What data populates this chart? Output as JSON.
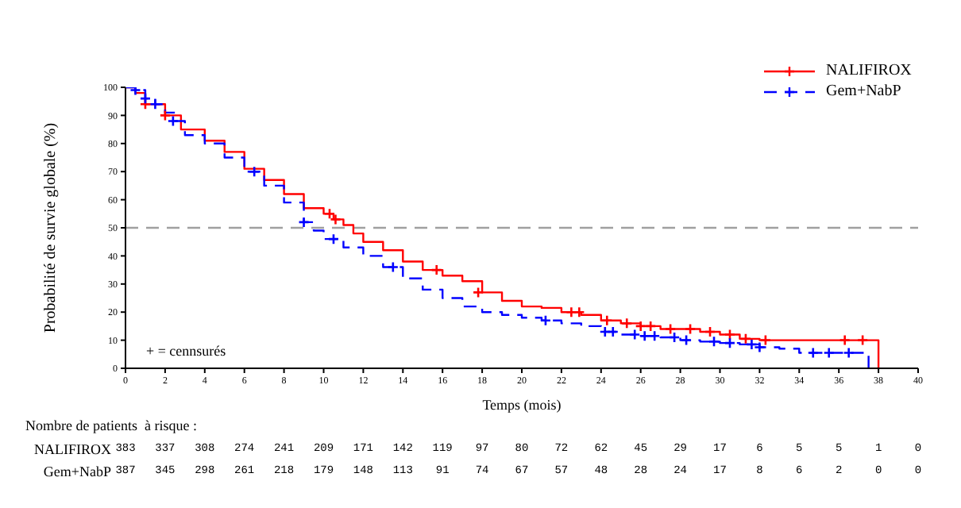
{
  "chart_data": {
    "type": "step",
    "xlabel": "Temps (mois)",
    "ylabel": "Probabilité de survie globale (%)",
    "xlim": [
      0,
      40
    ],
    "xticks": [
      0,
      2,
      4,
      6,
      8,
      10,
      12,
      14,
      16,
      18,
      20,
      22,
      24,
      26,
      28,
      30,
      32,
      34,
      36,
      38,
      40
    ],
    "ylim": [
      0,
      100
    ],
    "yticks": [
      0,
      10,
      20,
      30,
      40,
      50,
      60,
      70,
      80,
      90,
      100
    ],
    "grid": false,
    "legend": "top right",
    "ref_lines": [
      {
        "axis": "y",
        "value": 50,
        "color": "#a0a0a0",
        "line_style": "dashed"
      }
    ],
    "annotations": [
      "+ = cennsurés",
      "Nombre de patients  à risque :",
      "NALIFIROX 383 337 308 274 241 209 171 142 119 97 80 72 62 45 29 17 6 5 5 1 0",
      "Gem+NabP 387 345 298 261 218 179 148 113 91 74 67 57 48 28 24 17 8 6 2 0 0"
    ],
    "series": [
      {
        "name": "NALIFIROX",
        "color": "#ff0000",
        "line_style": "solid",
        "x": [
          0,
          0.5,
          1,
          2,
          2.8,
          4,
          5,
          6,
          7,
          8,
          9,
          10,
          10.5,
          11,
          11.5,
          12,
          13,
          14,
          15,
          16,
          17,
          18,
          19,
          20,
          21,
          22,
          23,
          24,
          25,
          26,
          27,
          29,
          30,
          31,
          32,
          38,
          38
        ],
        "values": [
          100,
          98,
          94,
          90,
          85,
          81,
          77,
          71,
          67,
          62,
          57,
          55,
          53,
          51,
          48,
          45,
          42,
          38,
          35,
          33,
          31,
          27,
          24,
          22,
          21.5,
          20,
          19,
          17,
          16,
          15,
          14,
          13,
          12,
          10.5,
          10,
          10,
          0
        ]
      },
      {
        "name": "Gem+NabP",
        "color": "#0000ff",
        "line_style": "dashed",
        "x": [
          0,
          0.5,
          1,
          1.5,
          2,
          2.5,
          3,
          4,
          5,
          6,
          7,
          8,
          9,
          9.5,
          10,
          11,
          12,
          13,
          14,
          15,
          16,
          17,
          18,
          19,
          20,
          21,
          22,
          23,
          24,
          25,
          26,
          27,
          28,
          29,
          30,
          31,
          32,
          33,
          34,
          37.5,
          37.5
        ],
        "values": [
          100,
          99,
          96,
          94,
          91,
          88,
          83,
          80,
          75,
          70,
          65,
          59,
          52,
          49,
          46,
          43,
          40,
          36,
          32,
          28,
          25,
          22,
          20,
          19,
          18,
          17,
          16,
          15,
          13,
          12,
          11.5,
          11,
          10,
          9.5,
          9,
          8.5,
          7.5,
          7,
          5.5,
          5.5,
          0
        ]
      },
      {
        "type": "scatter",
        "color": "#ff0000",
        "marker": "cross",
        "x": [
          1,
          2,
          10.3,
          10.6,
          15.7,
          17.8,
          22.5,
          22.9,
          24.3,
          25.3,
          26,
          26.5,
          27.5,
          28.5,
          29.5,
          30.5,
          31.3,
          32.3,
          36.3,
          37.2
        ],
        "values": [
          94,
          90,
          55,
          53,
          35,
          27,
          20,
          20,
          17,
          16,
          15,
          15,
          14,
          14,
          13,
          12,
          10.5,
          10,
          10,
          10
        ]
      },
      {
        "type": "scatter",
        "color": "#0000ff",
        "marker": "cross",
        "x": [
          0.5,
          1,
          1.5,
          2.4,
          6.5,
          9,
          10.5,
          13.5,
          21.2,
          24.2,
          24.6,
          25.7,
          26.2,
          26.7,
          27.7,
          28.3,
          29.7,
          30.5,
          31.6,
          32,
          34.7,
          35.5,
          36.5
        ],
        "values": [
          99,
          96,
          94,
          88,
          70,
          52,
          46,
          36,
          17,
          13,
          13,
          12,
          11.5,
          11.5,
          11,
          10,
          9.5,
          9,
          8.5,
          7.5,
          5.5,
          5.5,
          5.5
        ]
      }
    ]
  }
}
